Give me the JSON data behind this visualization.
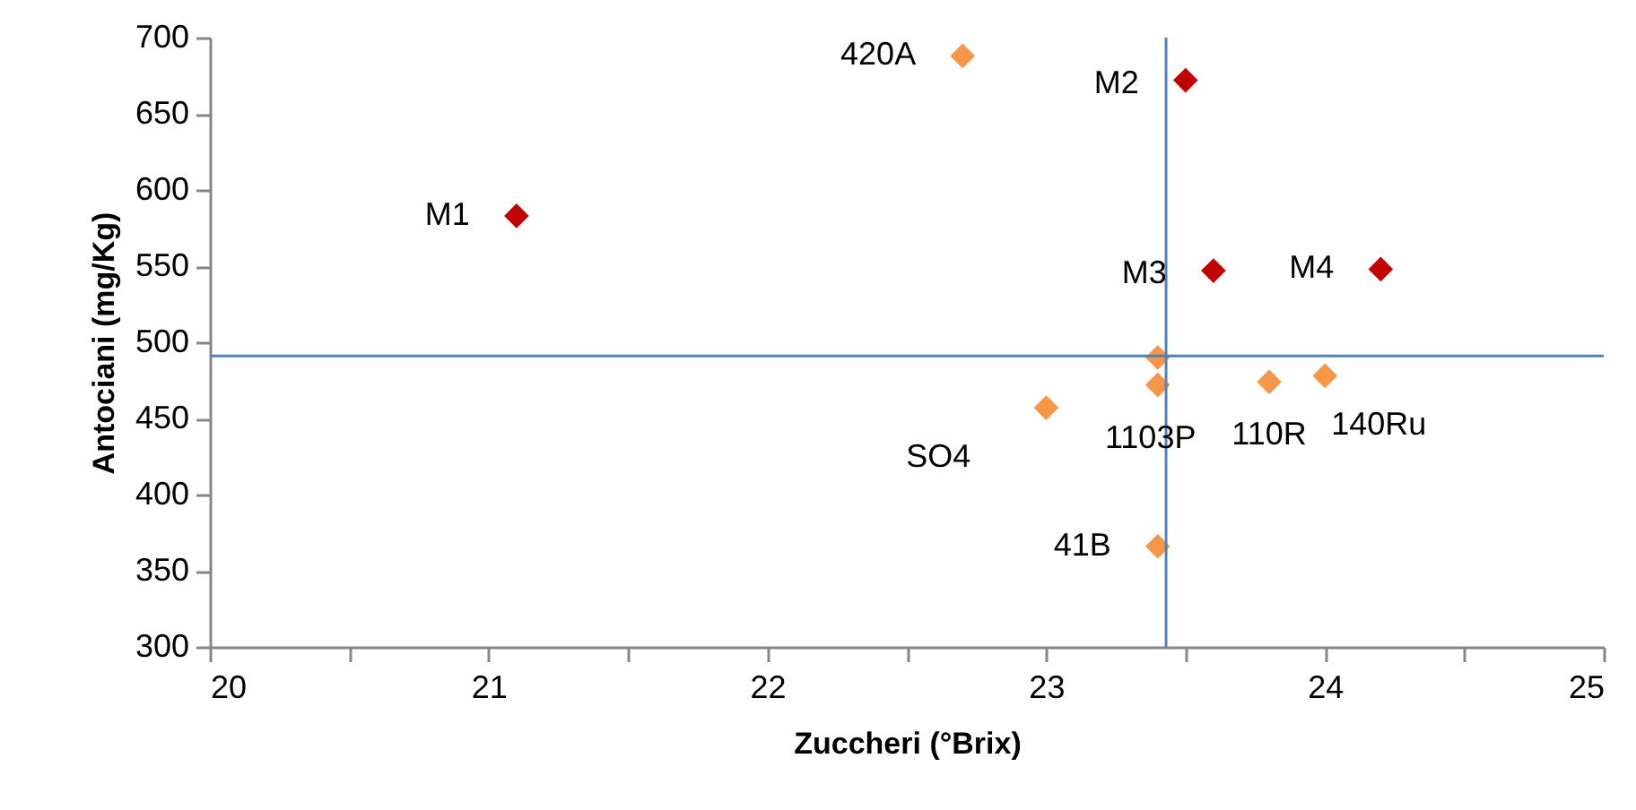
{
  "chart_data": {
    "type": "scatter",
    "xlabel": "Zuccheri (°Brix)",
    "ylabel": "Antociani (mg/Kg)",
    "xlim": [
      20,
      25
    ],
    "ylim": [
      300,
      700
    ],
    "xticks": [
      20,
      {
        "value": 20.5,
        "label": null
      },
      21,
      {
        "value": 21.5,
        "label": null
      },
      22,
      {
        "value": 22.5,
        "label": null
      },
      23,
      {
        "value": 23.5,
        "label": null
      },
      24,
      {
        "value": 24.5,
        "label": null
      },
      25
    ],
    "yticks": [
      300,
      350,
      400,
      450,
      500,
      550,
      600,
      650,
      700
    ],
    "marker": "diamond",
    "grid": false,
    "series": [
      {
        "color": "#f79646",
        "x": [
          22.7,
          23.4,
          23.4,
          23.0,
          23.8,
          24.0,
          23.4
        ],
        "values": [
          688,
          490,
          472,
          457,
          474,
          478,
          366
        ]
      },
      {
        "color": "#c00000",
        "x": [
          21.1,
          23.5,
          23.6,
          24.2
        ],
        "values": [
          583,
          672,
          547,
          548
        ]
      }
    ],
    "ref_lines": [
      {
        "axis": "x",
        "value": 23.43,
        "color": "#4f81bd"
      },
      {
        "axis": "y",
        "value": 491,
        "color": "#4f81bd"
      }
    ],
    "annotations": [
      {
        "text": "420A",
        "x": 22.7,
        "y": 688
      },
      {
        "text": "M2",
        "x": 23.5,
        "y": 672
      },
      {
        "text": "M1",
        "x": 21.1,
        "y": 583
      },
      {
        "text": "M3",
        "x": 23.6,
        "y": 547
      },
      {
        "text": "M4",
        "x": 24.2,
        "y": 548
      },
      {
        "text": "SO4",
        "x": 23.0,
        "y": 457
      },
      {
        "text": "1103P",
        "x": 23.4,
        "y": 472
      },
      {
        "text": "110R",
        "x": 23.8,
        "y": 474
      },
      {
        "text": "140Ru",
        "x": 24.0,
        "y": 478
      },
      {
        "text": "41B",
        "x": 23.4,
        "y": 366
      }
    ]
  }
}
